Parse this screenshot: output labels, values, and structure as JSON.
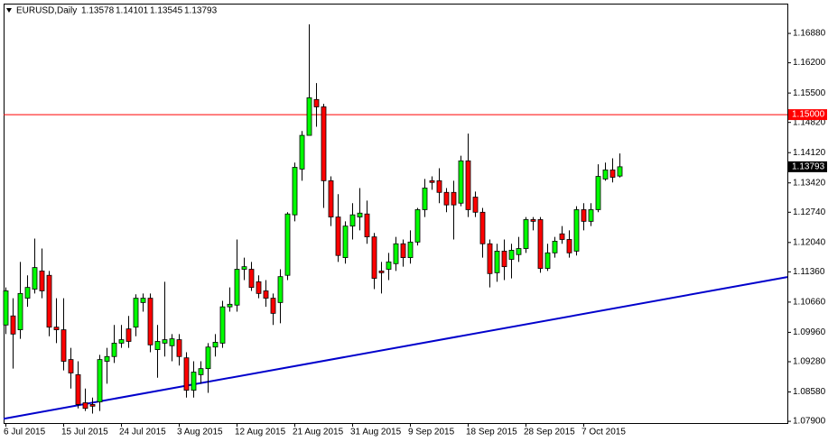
{
  "chart_data": {
    "type": "candlestick",
    "symbol": "EURUSD,Daily",
    "up_color": "#00ff00",
    "down_color": "#ff0000",
    "categories": [
      "6 Jul 2015",
      null,
      null,
      null,
      null,
      null,
      null,
      null,
      "15 Jul 2015",
      null,
      null,
      null,
      null,
      null,
      null,
      null,
      "24 Jul 2015",
      null,
      null,
      null,
      null,
      null,
      null,
      null,
      "3 Aug 2015",
      null,
      null,
      null,
      null,
      null,
      null,
      null,
      "12 Aug 2015",
      null,
      null,
      null,
      null,
      null,
      null,
      null,
      "21 Aug 2015",
      null,
      null,
      null,
      null,
      null,
      null,
      null,
      "31 Aug 2015",
      null,
      null,
      null,
      null,
      null,
      null,
      null,
      "9 Sep 2015",
      null,
      null,
      null,
      null,
      null,
      null,
      null,
      "18 Sep 2015",
      null,
      null,
      null,
      null,
      null,
      null,
      null,
      "28 Sep 2015",
      null,
      null,
      null,
      null,
      null,
      null,
      null,
      "7 Oct 2015",
      null,
      null,
      null,
      null,
      null
    ],
    "open": [
      1.1013,
      1.1034,
      1.1002,
      1.1075,
      1.1096,
      1.1138,
      1.1128,
      1.1008,
      1.1002,
      1.0933,
      1.0898,
      1.0833,
      1.0829,
      1.0835,
      1.0929,
      1.094,
      1.0971,
      1.1004,
      1.1008,
      1.1065,
      1.1075,
      1.0956,
      1.0971,
      1.0965,
      1.0979,
      1.0937,
      1.0862,
      1.0898,
      1.0912,
      1.0962,
      1.0971,
      1.1055,
      1.1059,
      1.1142,
      1.1142,
      1.1113,
      1.1092,
      1.1075,
      1.1065,
      1.1128,
      1.1268,
      1.1374,
      1.1452,
      1.1535,
      1.1518,
      1.1347,
      1.1263,
      1.1169,
      1.1242,
      1.1263,
      1.127,
      1.1217,
      1.1138,
      1.1142,
      1.1155,
      1.1201,
      1.1169,
      1.1205,
      1.128,
      1.1347,
      1.1347,
      1.132,
      1.132,
      1.1295,
      1.1393,
      1.1309,
      1.1274,
      1.1201,
      1.1134,
      1.1184,
      1.1165,
      1.1176,
      1.119,
      1.1257,
      1.1257,
      1.1144,
      1.118,
      1.1224,
      1.1211,
      1.1184,
      1.128,
      1.1253,
      1.128,
      1.1351,
      1.1372,
      1.13578
    ],
    "high": [
      1.11,
      1.1075,
      1.1159,
      1.1128,
      1.1213,
      1.119,
      1.1138,
      1.1075,
      1.1075,
      1.096,
      1.0929,
      1.0866,
      1.0845,
      1.0944,
      1.096,
      1.1013,
      1.1013,
      1.1034,
      1.1084,
      1.1086,
      1.1086,
      1.1013,
      1.1113,
      1.0992,
      1.0992,
      1.095,
      1.0929,
      1.0929,
      1.0971,
      1.0992,
      1.1069,
      1.11,
      1.1211,
      1.1169,
      1.1159,
      1.1128,
      1.1117,
      1.1086,
      1.1142,
      1.1274,
      1.1389,
      1.1462,
      1.1709,
      1.1573,
      1.1525,
      1.1357,
      1.1316,
      1.1253,
      1.1295,
      1.133,
      1.1301,
      1.1226,
      1.1159,
      1.118,
      1.1217,
      1.1211,
      1.1232,
      1.1284,
      1.1351,
      1.1357,
      1.1376,
      1.133,
      1.1347,
      1.1405,
      1.1456,
      1.1322,
      1.1284,
      1.1211,
      1.1201,
      1.1211,
      1.1201,
      1.1217,
      1.1263,
      1.1263,
      1.1263,
      1.1201,
      1.1217,
      1.1242,
      1.1232,
      1.1288,
      1.1295,
      1.1295,
      1.1385,
      1.1389,
      1.1399,
      1.14101
    ],
    "low": [
      1.0992,
      1.0912,
      1.0981,
      1.1055,
      1.1086,
      1.1075,
      1.0987,
      1.0971,
      1.0908,
      1.0866,
      1.082,
      1.0814,
      1.0808,
      1.0814,
      1.0877,
      1.0925,
      1.096,
      1.096,
      1.0987,
      1.1044,
      1.095,
      1.0891,
      1.094,
      1.0929,
      1.0919,
      1.0845,
      1.0845,
      1.0877,
      1.0856,
      1.094,
      1.096,
      1.1044,
      1.1044,
      1.1117,
      1.1092,
      1.1075,
      1.1055,
      1.1013,
      1.1017,
      1.1117,
      1.1253,
      1.1347,
      1.1452,
      1.1472,
      1.1284,
      1.1242,
      1.1159,
      1.1155,
      1.1211,
      1.1232,
      1.1201,
      1.1096,
      1.1086,
      1.1117,
      1.1138,
      1.1148,
      1.1155,
      1.1197,
      1.1263,
      1.1326,
      1.1295,
      1.1274,
      1.1211,
      1.1288,
      1.1263,
      1.1263,
      1.1169,
      1.11,
      1.1113,
      1.1117,
      1.1121,
      1.1159,
      1.118,
      1.1232,
      1.1134,
      1.1138,
      1.1169,
      1.1201,
      1.1169,
      1.1174,
      1.1232,
      1.1242,
      1.1274,
      1.1347,
      1.1343,
      1.13545
    ],
    "close": [
      1.1092,
      1.0992,
      1.1086,
      1.11,
      1.1146,
      1.1092,
      1.1008,
      1.1002,
      1.0929,
      1.0902,
      1.0829,
      1.082,
      1.0825,
      1.0933,
      1.094,
      1.0971,
      1.0979,
      1.0975,
      1.1075,
      1.1075,
      1.0967,
      1.0975,
      1.0979,
      1.0981,
      1.094,
      1.0862,
      1.0904,
      1.0912,
      1.0962,
      1.0973,
      1.1055,
      1.1061,
      1.1142,
      1.1148,
      1.11,
      1.1086,
      1.1075,
      1.104,
      1.1125,
      1.127,
      1.1378,
      1.1452,
      1.1539,
      1.1518,
      1.1347,
      1.1263,
      1.1174,
      1.1242,
      1.1268,
      1.1272,
      1.1217,
      1.1121,
      1.1134,
      1.1159,
      1.1201,
      1.1169,
      1.1205,
      1.128,
      1.133,
      1.1343,
      1.132,
      1.1291,
      1.1291,
      1.1393,
      1.128,
      1.1274,
      1.1201,
      1.1132,
      1.1184,
      1.1148,
      1.1186,
      1.119,
      1.1257,
      1.1253,
      1.1144,
      1.118,
      1.1207,
      1.1211,
      1.118,
      1.128,
      1.1253,
      1.128,
      1.1357,
      1.1372,
      1.1355,
      1.13793
    ],
    "ylim": [
      1.0786,
      1.1757
    ],
    "yticks": [
      {
        "value": 1.1688,
        "label": "1.16880"
      },
      {
        "value": 1.162,
        "label": "1.16200"
      },
      {
        "value": 1.155,
        "label": "1.15500"
      },
      {
        "value": 1.1482,
        "label": "1.14820"
      },
      {
        "value": 1.1412,
        "label": "1.14120"
      },
      {
        "value": 1.1342,
        "label": "1.13420"
      },
      {
        "value": 1.1274,
        "label": "1.12740"
      },
      {
        "value": 1.1204,
        "label": "1.12040"
      },
      {
        "value": 1.1136,
        "label": "1.11360"
      },
      {
        "value": 1.1066,
        "label": "1.10660"
      },
      {
        "value": 1.0996,
        "label": "1.09960"
      },
      {
        "value": 1.0928,
        "label": "1.09280"
      },
      {
        "value": 1.0858,
        "label": "1.08580"
      },
      {
        "value": 1.079,
        "label": "1.07900"
      }
    ],
    "hline": {
      "value": 1.15,
      "label": "1.15000",
      "color": "#ff0000"
    },
    "trendline": {
      "start": 1.0796,
      "end": 1.1124,
      "color": "#0000cc"
    }
  }
}
